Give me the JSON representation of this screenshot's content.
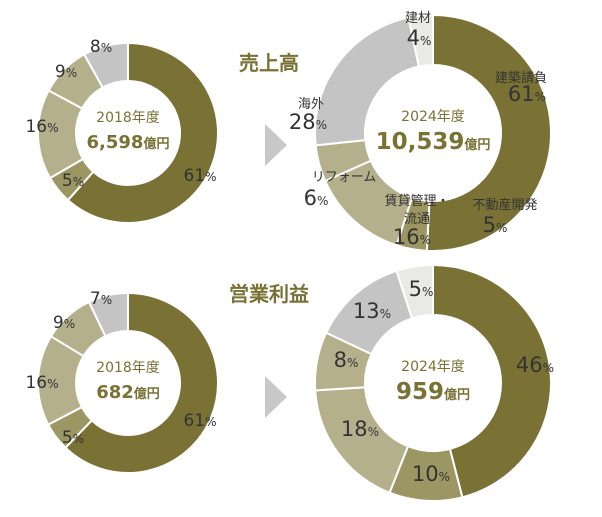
{
  "colors": {
    "olive": "#7a7235",
    "olive_mid": "#9c9662",
    "olive_light": "#b4b08c",
    "gray": "#c4c4c4",
    "gray_light": "#e9e9e5",
    "arrow": "#c8c8c8"
  },
  "chart_data": [
    {
      "type": "pie",
      "section_title": "売上高",
      "center": {
        "year": "2018年度",
        "value": "6,598",
        "unit": "億円"
      },
      "values": [
        61,
        5,
        16,
        9,
        8
      ],
      "labels": [
        "61%",
        "5%",
        "16%",
        "9%",
        "8%"
      ],
      "categories": [
        "",
        "",
        "",
        "",
        ""
      ]
    },
    {
      "type": "pie",
      "center": {
        "year": "2024年度",
        "value": "10,539",
        "unit": "億円"
      },
      "values": [
        61,
        5,
        16,
        6,
        28,
        4
      ],
      "labels": [
        "61%",
        "5%",
        "16%",
        "6%",
        "28%",
        "4%"
      ],
      "categories": [
        "建築請負",
        "不動産開発",
        "賃貸管理・流通",
        "リフォーム",
        "海外",
        "建材"
      ]
    },
    {
      "type": "pie",
      "section_title": "営業利益",
      "center": {
        "year": "2018年度",
        "value": "682",
        "unit": "億円"
      },
      "values": [
        61,
        5,
        16,
        9,
        7
      ],
      "labels": [
        "61%",
        "5%",
        "16%",
        "9%",
        "7%"
      ],
      "categories": [
        "",
        "",
        "",
        "",
        ""
      ]
    },
    {
      "type": "pie",
      "center": {
        "year": "2024年度",
        "value": "959",
        "unit": "億円"
      },
      "values": [
        46,
        10,
        18,
        8,
        13,
        5
      ],
      "labels": [
        "46%",
        "10%",
        "18%",
        "8%",
        "13%",
        "5%"
      ],
      "categories": [
        "",
        "",
        "",
        "",
        "",
        ""
      ]
    }
  ]
}
